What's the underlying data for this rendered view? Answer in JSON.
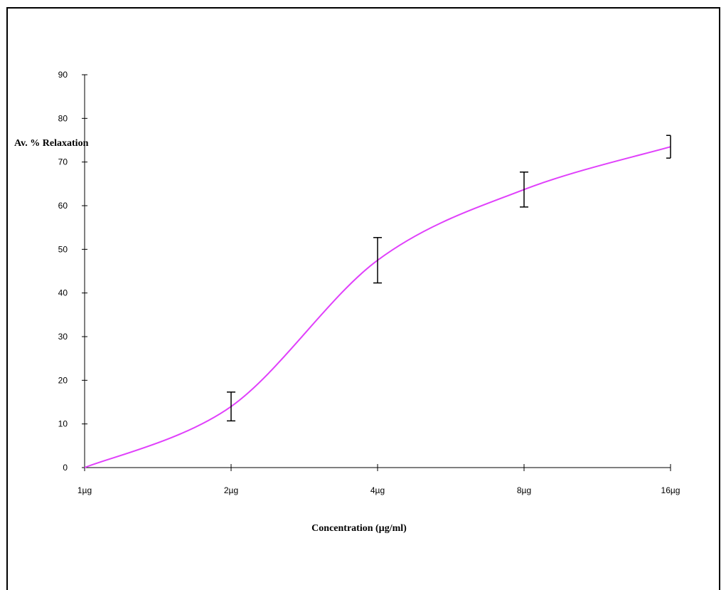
{
  "chart_data": {
    "type": "line",
    "xlabel": "Concentration (µg/ml)",
    "ylabel": "Av. % Relaxation",
    "categories": [
      "1µg",
      "2µg",
      "4µg",
      "8µg",
      "16µg"
    ],
    "ylim": [
      0,
      90
    ],
    "yticks": [
      0,
      10,
      20,
      30,
      40,
      50,
      60,
      70,
      80,
      90
    ],
    "series": [
      {
        "values": [
          0,
          14,
          47.5,
          63.7,
          73.5
        ],
        "error": [
          0,
          3.3,
          5.2,
          4.0,
          2.6
        ],
        "color": "#e040fb"
      }
    ],
    "grid": false,
    "legend": "none",
    "curve": "smooth"
  }
}
